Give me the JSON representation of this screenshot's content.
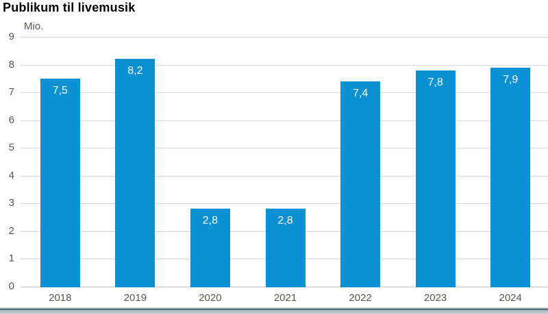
{
  "page": {
    "background": "#ffffff"
  },
  "header": {
    "title": "Publikum til livemusik"
  },
  "chart_data": {
    "type": "bar",
    "title": "Publikum til livemusik",
    "xlabel": "",
    "ylabel": "Mio.",
    "categories": [
      "2018",
      "2019",
      "2020",
      "2021",
      "2022",
      "2023",
      "2024"
    ],
    "values": [
      7.5,
      8.2,
      2.8,
      2.8,
      7.4,
      7.8,
      7.9
    ],
    "value_labels": [
      "7,5",
      "8,2",
      "2,8",
      "2,8",
      "7,4",
      "7,8",
      "7,9"
    ],
    "ylim": [
      0,
      9
    ],
    "yticks": [
      0,
      1,
      2,
      3,
      4,
      5,
      6,
      7,
      8,
      9
    ],
    "ytick_step": 1,
    "grid": true,
    "legend_position": "none",
    "decimal_separator": ",",
    "value_labels_inside_bars": true
  },
  "colors": {
    "bar": "#0991d3",
    "bar_value_text": "#ffffff",
    "grid_line": "#d9d9d3",
    "axis_line": "#c7c7c1",
    "tick_text": "#57574f",
    "title_text": "#000000",
    "footer_hairline": "#d6dbde",
    "footer_line_dark": "#47626f",
    "footer_band_top": "#a3b4bf",
    "footer_band_bottom": "#c9d1d6"
  }
}
